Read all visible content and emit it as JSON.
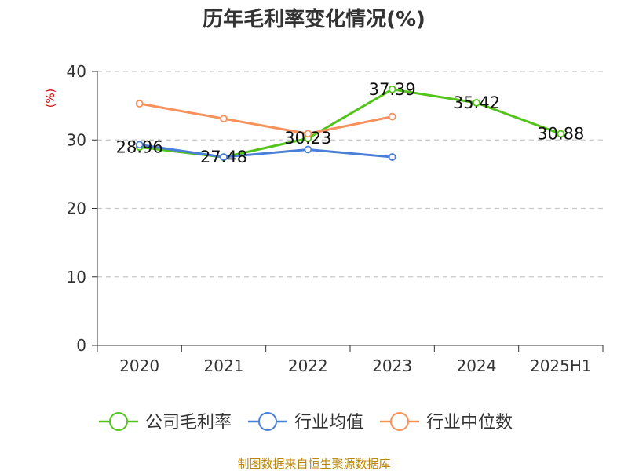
{
  "chart_data": {
    "type": "line",
    "title": "历年毛利率变化情况(%)",
    "ylabel": "(%)",
    "xlabel": "",
    "categories": [
      "2020",
      "2021",
      "2022",
      "2023",
      "2024",
      "2025H1"
    ],
    "ylim": [
      0,
      40
    ],
    "yticks": [
      0,
      10,
      20,
      30,
      40
    ],
    "grid": true,
    "legend_position": "bottom",
    "series": [
      {
        "name": "公司毛利率",
        "color": "#52c41a",
        "values": [
          28.96,
          27.48,
          30.23,
          37.39,
          35.42,
          30.88
        ],
        "labels": [
          "28.96",
          "27.48",
          "30.23",
          "37.39",
          "35.42",
          "30.88"
        ]
      },
      {
        "name": "行业均值",
        "color": "#4a7fd8",
        "values": [
          29.3,
          27.5,
          28.6,
          27.5,
          null,
          null
        ]
      },
      {
        "name": "行业中位数",
        "color": "#f7915c",
        "values": [
          35.3,
          33.1,
          30.9,
          33.4,
          null,
          null
        ]
      }
    ],
    "source": "制图数据来自恒生聚源数据库"
  }
}
